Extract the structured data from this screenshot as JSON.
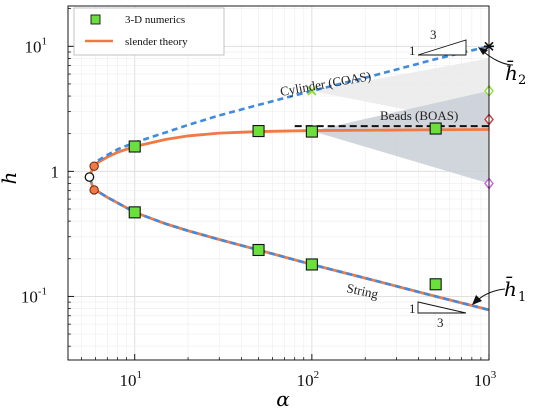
{
  "chart_data": {
    "type": "line",
    "xscale": "log",
    "yscale": "log",
    "xlim": [
      4.2,
      1000
    ],
    "ylim": [
      0.031,
      21
    ],
    "xlabel": "α",
    "ylabel": "h̄",
    "grid": true,
    "legend_placement": "top-left",
    "legend": {
      "markers_label": "3-D numerics",
      "line_label": "slender theory"
    },
    "x_ticks": [
      {
        "value": 10,
        "label": "10^1"
      },
      {
        "value": 100,
        "label": "10^2"
      },
      {
        "value": 1000,
        "label": "10^3"
      }
    ],
    "y_ticks": [
      {
        "value": 0.1,
        "label": "10^-1"
      },
      {
        "value": 1,
        "label": "1"
      },
      {
        "value": 10,
        "label": "10^1"
      }
    ],
    "colors": {
      "theory": "#f07a45",
      "dashed": "#3e8be0",
      "numerics_fill": "#6be03d",
      "beads_band": "#c9ced6",
      "cylinder_band": "#eaeaea",
      "marker_green": "#8fe03a",
      "marker_red": "#d03a3a",
      "marker_violet": "#d060e0"
    },
    "slender_theory": [
      {
        "name": "upper branch",
        "x": [
          5.55,
          5.8,
          6.2,
          7,
          8,
          10,
          15,
          20,
          30,
          50,
          100,
          200,
          500,
          1000
        ],
        "y": [
          0.9,
          1.07,
          1.18,
          1.3,
          1.42,
          1.58,
          1.8,
          1.92,
          2.02,
          2.08,
          2.12,
          2.13,
          2.15,
          2.16
        ]
      },
      {
        "name": "lower branch",
        "x": [
          5.55,
          5.8,
          6.2,
          7,
          8,
          10,
          15,
          20,
          30,
          50,
          100,
          200,
          500,
          1000
        ],
        "y": [
          0.9,
          0.75,
          0.69,
          0.62,
          0.56,
          0.47,
          0.38,
          0.335,
          0.285,
          0.235,
          0.18,
          0.14,
          0.1,
          0.078
        ]
      }
    ],
    "dashed_continuation": [
      {
        "name": "Cylinder (COAS)",
        "x": [
          6.2,
          7,
          8,
          10,
          15,
          20,
          30,
          50,
          100,
          200,
          500,
          1000
        ],
        "y": [
          1.22,
          1.35,
          1.5,
          1.7,
          2.05,
          2.35,
          2.8,
          3.4,
          4.4,
          5.6,
          7.9,
          10
        ]
      },
      {
        "name": "String",
        "x": [
          5.55,
          5.8,
          6.2,
          7,
          8,
          10,
          15,
          20,
          30,
          50,
          100,
          200,
          500,
          1000
        ],
        "y": [
          0.9,
          0.75,
          0.69,
          0.62,
          0.56,
          0.47,
          0.38,
          0.335,
          0.285,
          0.235,
          0.18,
          0.14,
          0.1,
          0.078
        ]
      }
    ],
    "beads_line": {
      "x": [
        80,
        1000
      ],
      "y": [
        2.3,
        2.3
      ]
    },
    "numerics": {
      "x": [
        10,
        10,
        50,
        50,
        100,
        100,
        500,
        500
      ],
      "y": [
        1.58,
        0.47,
        2.1,
        0.235,
        2.08,
        0.18,
        2.2,
        0.125
      ]
    },
    "bifurcation_points": {
      "x": [
        5.55,
        5.9,
        5.9
      ],
      "y": [
        0.9,
        1.1,
        0.71
      ]
    },
    "right_edge_markers": [
      {
        "symbol": "x",
        "x": 1000,
        "y": 10
      },
      {
        "symbol": "diamond",
        "x": 1000,
        "y": 4.4
      },
      {
        "symbol": "diamond",
        "x": 1000,
        "y": 2.6
      },
      {
        "symbol": "diamond",
        "x": 1000,
        "y": 0.8
      }
    ],
    "cylinder_x_marker": {
      "x": 100,
      "y": 4.4
    },
    "cylinder_band": {
      "x": [
        100,
        1000
      ],
      "y_low": [
        4.4,
        2.3
      ],
      "y_high": [
        4.4,
        8
      ]
    },
    "beads_band": {
      "x": [
        100,
        1000
      ],
      "y_low": [
        2.1,
        0.8
      ],
      "y_high": [
        2.1,
        4.4
      ]
    },
    "annotations": {
      "cylinder": "Cylinder (COAS)",
      "beads": "Beads (BOAS)",
      "string": "String",
      "h2": "h̄",
      "h2_sub": "2",
      "h1": "h̄",
      "h1_sub": "1",
      "slope_top_run": "1",
      "slope_top_rise": "3",
      "slope_bottom_run": "1",
      "slope_bottom_rise": "3"
    }
  }
}
